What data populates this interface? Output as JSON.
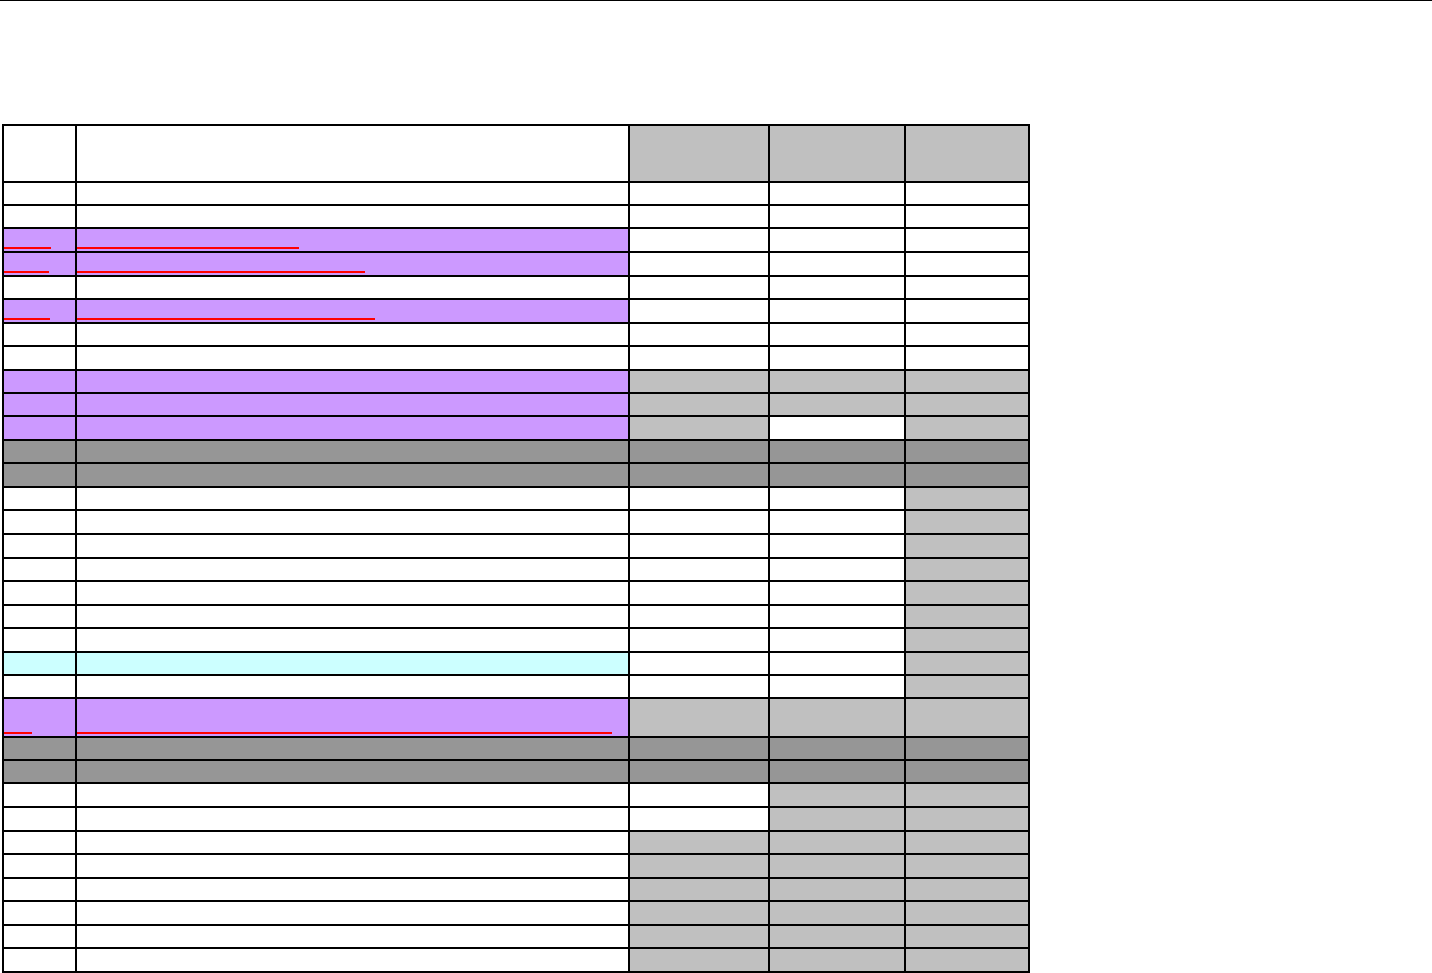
{
  "colors": {
    "white": "#ffffff",
    "purple": "#cc99ff",
    "light_gray": "#c0c0c0",
    "dark_gray": "#969696",
    "cyan": "#ccffff",
    "underline_red": "#ff0000"
  },
  "rows": [
    {
      "fills": [
        "white",
        "white",
        "light_gray",
        "light_gray",
        "light_gray"
      ]
    },
    {
      "fills": [
        "white",
        "white",
        "white",
        "white",
        "white"
      ]
    },
    {
      "fills": [
        "white",
        "white",
        "white",
        "white",
        "white"
      ]
    },
    {
      "fills": [
        "purple",
        "purple",
        "white",
        "white",
        "white"
      ],
      "underline": true
    },
    {
      "fills": [
        "purple",
        "purple",
        "white",
        "white",
        "white"
      ],
      "underline": true
    },
    {
      "fills": [
        "white",
        "white",
        "white",
        "white",
        "white"
      ]
    },
    {
      "fills": [
        "purple",
        "purple",
        "white",
        "white",
        "white"
      ],
      "underline": true
    },
    {
      "fills": [
        "white",
        "white",
        "white",
        "white",
        "white"
      ]
    },
    {
      "fills": [
        "white",
        "white",
        "white",
        "white",
        "white"
      ]
    },
    {
      "fills": [
        "purple",
        "purple",
        "light_gray",
        "light_gray",
        "light_gray"
      ]
    },
    {
      "fills": [
        "purple",
        "purple",
        "light_gray",
        "light_gray",
        "light_gray"
      ]
    },
    {
      "fills": [
        "purple",
        "purple",
        "light_gray",
        "white",
        "light_gray"
      ]
    },
    {
      "fills": [
        "dark_gray",
        "dark_gray",
        "dark_gray",
        "dark_gray",
        "dark_gray"
      ]
    },
    {
      "fills": [
        "dark_gray",
        "dark_gray",
        "dark_gray",
        "dark_gray",
        "dark_gray"
      ]
    },
    {
      "fills": [
        "white",
        "white",
        "white",
        "white",
        "light_gray"
      ]
    },
    {
      "fills": [
        "white",
        "white",
        "white",
        "white",
        "light_gray"
      ]
    },
    {
      "fills": [
        "white",
        "white",
        "white",
        "white",
        "light_gray"
      ]
    },
    {
      "fills": [
        "white",
        "white",
        "white",
        "white",
        "light_gray"
      ]
    },
    {
      "fills": [
        "white",
        "white",
        "white",
        "white",
        "light_gray"
      ]
    },
    {
      "fills": [
        "white",
        "white",
        "white",
        "white",
        "light_gray"
      ]
    },
    {
      "fills": [
        "white",
        "white",
        "white",
        "white",
        "light_gray"
      ]
    },
    {
      "fills": [
        "cyan",
        "cyan",
        "white",
        "white",
        "light_gray"
      ]
    },
    {
      "fills": [
        "white",
        "white",
        "white",
        "white",
        "light_gray"
      ]
    },
    {
      "fills": [
        "purple",
        "purple",
        "light_gray",
        "light_gray",
        "light_gray"
      ],
      "underline": true
    },
    {
      "fills": [
        "dark_gray",
        "dark_gray",
        "dark_gray",
        "dark_gray",
        "dark_gray"
      ]
    },
    {
      "fills": [
        "dark_gray",
        "dark_gray",
        "dark_gray",
        "dark_gray",
        "dark_gray"
      ]
    },
    {
      "fills": [
        "white",
        "white",
        "white",
        "light_gray",
        "light_gray"
      ]
    },
    {
      "fills": [
        "white",
        "white",
        "white",
        "light_gray",
        "light_gray"
      ]
    },
    {
      "fills": [
        "white",
        "white",
        "light_gray",
        "light_gray",
        "light_gray"
      ]
    },
    {
      "fills": [
        "white",
        "white",
        "light_gray",
        "light_gray",
        "light_gray"
      ]
    },
    {
      "fills": [
        "white",
        "white",
        "light_gray",
        "light_gray",
        "light_gray"
      ]
    },
    {
      "fills": [
        "white",
        "white",
        "light_gray",
        "light_gray",
        "light_gray"
      ]
    },
    {
      "fills": [
        "white",
        "white",
        "light_gray",
        "light_gray",
        "light_gray"
      ]
    },
    {
      "fills": [
        "white",
        "white",
        "light_gray",
        "light_gray",
        "light_gray"
      ]
    }
  ]
}
